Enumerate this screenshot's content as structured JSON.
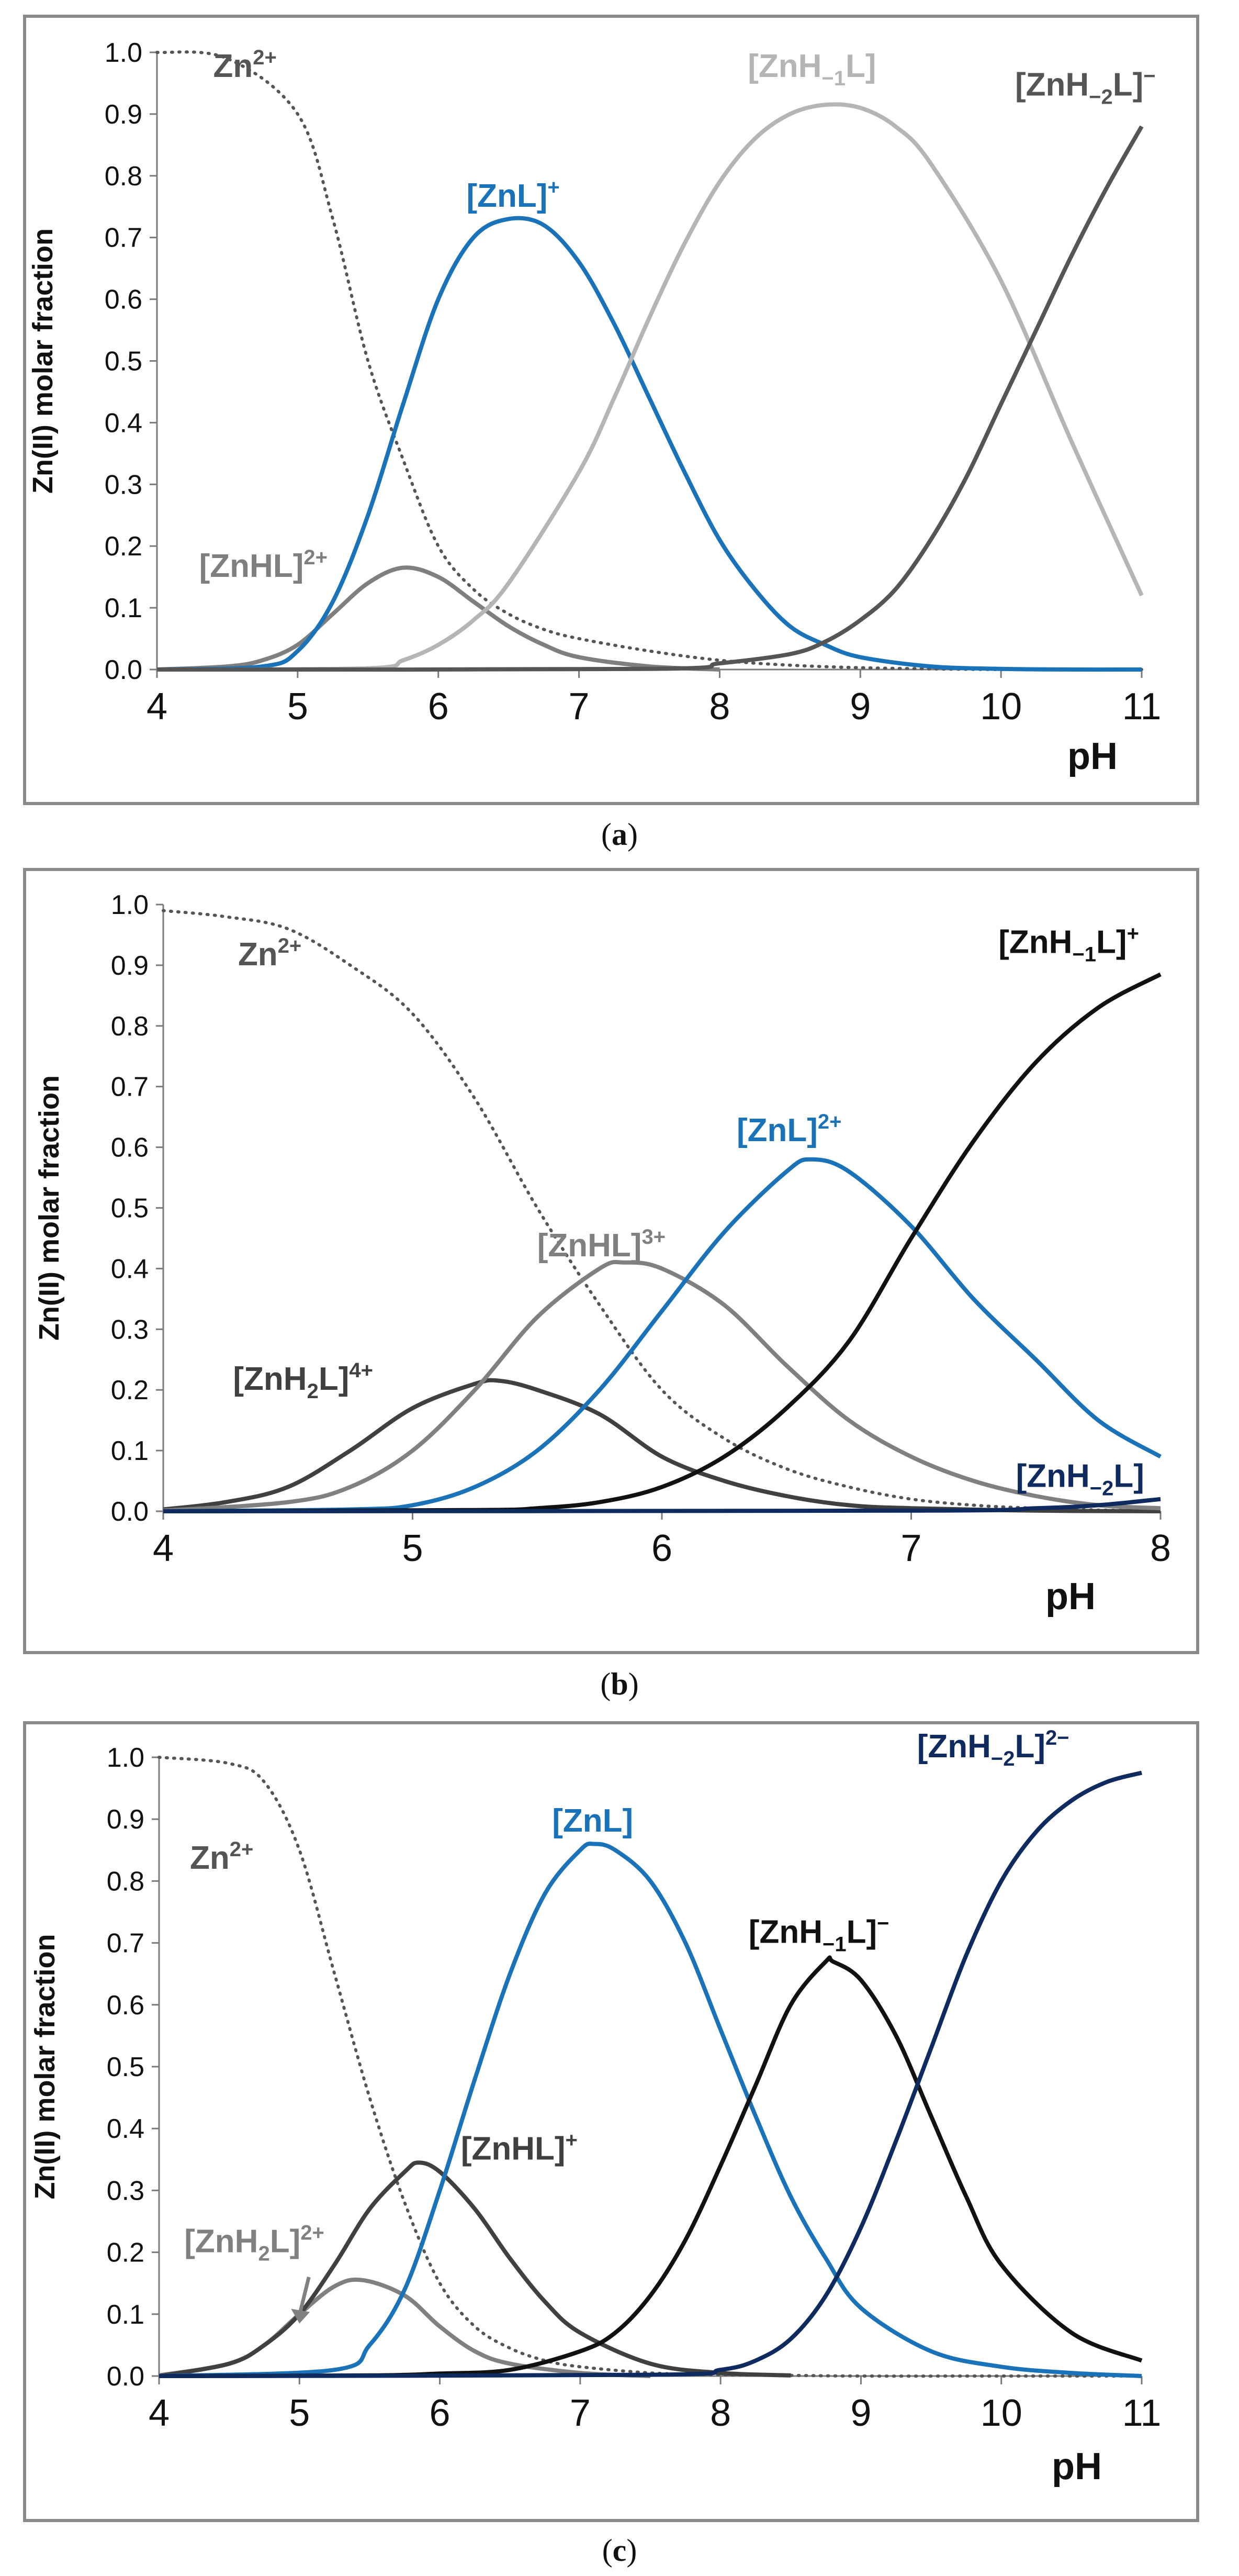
{
  "captions": {
    "a": "a",
    "b": "b",
    "c": "c"
  },
  "chart_data": [
    {
      "id": "a",
      "type": "line",
      "xlabel": "pH",
      "ylabel": "Zn(II) molar fraction",
      "xlim": [
        4,
        11
      ],
      "ylim": [
        0,
        1
      ],
      "xticks": [
        "4",
        "5",
        "6",
        "7",
        "8",
        "9",
        "10",
        "11"
      ],
      "yticks": [
        "0.0",
        "0.1",
        "0.2",
        "0.3",
        "0.4",
        "0.5",
        "0.6",
        "0.7",
        "0.8",
        "0.9",
        "1.0"
      ],
      "grid": false,
      "series": [
        {
          "name": "Zn²⁺",
          "color": "#555555",
          "dash": true,
          "x": [
            4,
            4.5,
            5,
            5.25,
            5.5,
            5.75,
            6,
            6.25,
            6.5,
            6.75,
            7,
            7.5,
            8,
            8.5,
            9,
            9.5,
            10,
            10.5,
            11
          ],
          "y": [
            1,
            0.99,
            0.9,
            0.73,
            0.5,
            0.34,
            0.2,
            0.13,
            0.09,
            0.065,
            0.05,
            0.03,
            0.015,
            0.007,
            0.003,
            0.001,
            0,
            0,
            0
          ],
          "label": {
            "prefix": "Zn",
            "sup": "2+",
            "at": [
              4.4,
              0.96
            ],
            "color": "#555555"
          }
        },
        {
          "name": "[ZnHL]²⁺",
          "color": "#7f7f7f",
          "x": [
            4,
            4.5,
            4.75,
            5,
            5.25,
            5.5,
            5.75,
            6,
            6.25,
            6.5,
            6.75,
            7,
            7.5,
            8
          ],
          "y": [
            0,
            0.005,
            0.015,
            0.04,
            0.09,
            0.14,
            0.165,
            0.15,
            0.11,
            0.07,
            0.04,
            0.02,
            0.005,
            0
          ],
          "label": {
            "prefix": "[ZnHL]",
            "sup": "2+",
            "at": [
              4.3,
              0.15
            ],
            "color": "#7f7f7f"
          }
        },
        {
          "name": "[ZnL]⁺",
          "color": "#1a73b8",
          "x": [
            4,
            4.75,
            5,
            5.25,
            5.5,
            5.75,
            6,
            6.25,
            6.5,
            6.75,
            7,
            7.25,
            7.5,
            7.75,
            8,
            8.25,
            8.5,
            8.75,
            9,
            9.5,
            10,
            10.5,
            11
          ],
          "y": [
            0,
            0.005,
            0.03,
            0.11,
            0.25,
            0.43,
            0.6,
            0.7,
            0.73,
            0.72,
            0.66,
            0.56,
            0.44,
            0.32,
            0.21,
            0.13,
            0.07,
            0.04,
            0.02,
            0.005,
            0.001,
            0,
            0
          ],
          "label": {
            "prefix": "[ZnL]",
            "sup": "+",
            "at": [
              6.2,
              0.75
            ],
            "color": "#1a73b8"
          }
        },
        {
          "name": "[ZnH−1L]",
          "color": "#b5b5b5",
          "x": [
            4,
            5.5,
            5.75,
            6,
            6.25,
            6.5,
            7,
            7.25,
            7.5,
            7.75,
            8,
            8.25,
            8.5,
            8.75,
            9,
            9.25,
            9.5,
            10,
            10.5,
            11
          ],
          "y": [
            0,
            0.002,
            0.015,
            0.04,
            0.08,
            0.14,
            0.32,
            0.44,
            0.57,
            0.69,
            0.79,
            0.86,
            0.9,
            0.915,
            0.91,
            0.88,
            0.82,
            0.63,
            0.37,
            0.12
          ],
          "label": {
            "prefix": "[ZnH",
            "sub": "−1",
            "suffix": "L]",
            "at": [
              8.2,
              0.96
            ],
            "color": "#b5b5b5"
          }
        },
        {
          "name": "[ZnH−2L]⁻",
          "color": "#555555",
          "x": [
            4,
            7.5,
            8,
            8.5,
            8.75,
            9,
            9.25,
            9.5,
            9.75,
            10,
            10.25,
            10.5,
            10.75,
            11
          ],
          "y": [
            0,
            0.001,
            0.01,
            0.025,
            0.045,
            0.08,
            0.13,
            0.21,
            0.31,
            0.43,
            0.55,
            0.67,
            0.78,
            0.88
          ],
          "label": {
            "prefix": "[ZnH",
            "sub": "−2",
            "suffix": "L]",
            "sup": "−",
            "at": [
              10.1,
              0.93
            ],
            "color": "#555555"
          }
        }
      ]
    },
    {
      "id": "b",
      "type": "line",
      "xlabel": "pH",
      "ylabel": "Zn(II) molar fraction",
      "xlim": [
        4,
        8
      ],
      "ylim": [
        0,
        1
      ],
      "xticks": [
        "4",
        "5",
        "6",
        "7",
        "8"
      ],
      "yticks": [
        "0.0",
        "0.1",
        "0.2",
        "0.3",
        "0.4",
        "0.5",
        "0.6",
        "0.7",
        "0.8",
        "0.9",
        "1.0"
      ],
      "grid": false,
      "series": [
        {
          "name": "Zn²⁺",
          "color": "#555555",
          "dash": true,
          "x": [
            4,
            4.25,
            4.5,
            4.75,
            5,
            5.25,
            5.5,
            5.75,
            6,
            6.25,
            6.5,
            6.75,
            7,
            7.25,
            7.5,
            7.75,
            8
          ],
          "y": [
            0.99,
            0.98,
            0.96,
            0.9,
            0.82,
            0.68,
            0.5,
            0.34,
            0.2,
            0.12,
            0.07,
            0.04,
            0.02,
            0.01,
            0.005,
            0.002,
            0.001
          ],
          "label": {
            "prefix": "Zn",
            "sup": "2+",
            "at": [
              4.3,
              0.9
            ],
            "color": "#555555"
          }
        },
        {
          "name": "[ZnH2L]⁴⁺",
          "color": "#404040",
          "x": [
            4,
            4.25,
            4.5,
            4.75,
            5,
            5.25,
            5.35,
            5.5,
            5.75,
            6,
            6.25,
            6.5,
            6.75,
            7,
            7.5,
            8
          ],
          "y": [
            0.003,
            0.015,
            0.04,
            0.1,
            0.17,
            0.21,
            0.215,
            0.2,
            0.16,
            0.09,
            0.05,
            0.025,
            0.01,
            0.005,
            0.001,
            0
          ],
          "label": {
            "prefix": "[ZnH",
            "sub": "2",
            "suffix": "L]",
            "sup": "4+",
            "at": [
              4.28,
              0.2
            ],
            "color": "#404040"
          }
        },
        {
          "name": "[ZnHL]³⁺",
          "color": "#808080",
          "x": [
            4,
            4.5,
            4.75,
            5,
            5.25,
            5.5,
            5.75,
            5.85,
            6,
            6.25,
            6.5,
            6.75,
            7,
            7.25,
            7.5,
            7.75,
            8
          ],
          "y": [
            0.001,
            0.015,
            0.04,
            0.1,
            0.2,
            0.32,
            0.4,
            0.41,
            0.4,
            0.34,
            0.24,
            0.15,
            0.09,
            0.05,
            0.025,
            0.01,
            0.005
          ],
          "label": {
            "prefix": "[ZnHL]",
            "sup": "3+",
            "at": [
              5.5,
              0.42
            ],
            "color": "#808080"
          }
        },
        {
          "name": "[ZnL]²⁺",
          "color": "#1a73b8",
          "x": [
            4,
            4.75,
            5,
            5.25,
            5.5,
            5.75,
            6,
            6.25,
            6.5,
            6.6,
            6.75,
            7,
            7.25,
            7.5,
            7.75,
            8
          ],
          "y": [
            0,
            0.003,
            0.01,
            0.04,
            0.1,
            0.2,
            0.33,
            0.46,
            0.56,
            0.58,
            0.56,
            0.47,
            0.35,
            0.25,
            0.15,
            0.09
          ],
          "label": {
            "prefix": "[ZnL]",
            "sup": "2+",
            "at": [
              6.3,
              0.61
            ],
            "color": "#1a73b8"
          }
        },
        {
          "name": "[ZnH−1L]⁺",
          "color": "#111111",
          "x": [
            4,
            5.25,
            5.5,
            5.75,
            6,
            6.25,
            6.5,
            6.75,
            7,
            7.25,
            7.5,
            7.75,
            8
          ],
          "y": [
            0,
            0.002,
            0.005,
            0.015,
            0.04,
            0.09,
            0.17,
            0.28,
            0.45,
            0.61,
            0.74,
            0.83,
            0.885
          ],
          "label": {
            "prefix": "[ZnH",
            "sub": "−1",
            "suffix": "L]",
            "sup": "+",
            "at": [
              7.35,
              0.92
            ],
            "color": "#111111"
          }
        },
        {
          "name": "[ZnH−2L]",
          "color": "#0e2a5e",
          "x": [
            4,
            7,
            7.5,
            7.75,
            8
          ],
          "y": [
            0,
            0.001,
            0.005,
            0.01,
            0.02
          ],
          "label": {
            "prefix": "[ZnH",
            "sub": "−2",
            "suffix": "L]",
            "at": [
              7.42,
              0.04
            ],
            "color": "#0e2a5e"
          }
        }
      ]
    },
    {
      "id": "c",
      "type": "line",
      "xlabel": "pH",
      "ylabel": "Zn(II) molar fraction",
      "xlim": [
        4,
        11
      ],
      "ylim": [
        0,
        1
      ],
      "xticks": [
        "4",
        "5",
        "6",
        "7",
        "8",
        "9",
        "10",
        "11"
      ],
      "yticks": [
        "0.0",
        "0.1",
        "0.2",
        "0.3",
        "0.4",
        "0.5",
        "0.6",
        "0.7",
        "0.8",
        "0.9",
        "1.0"
      ],
      "grid": false,
      "series": [
        {
          "name": "Zn²⁺",
          "color": "#555555",
          "dash": true,
          "x": [
            4,
            4.5,
            4.75,
            5,
            5.25,
            5.5,
            5.75,
            6,
            6.25,
            6.5,
            6.75,
            7,
            7.5,
            8,
            8.5,
            9,
            10,
            11
          ],
          "y": [
            1,
            0.99,
            0.96,
            0.85,
            0.65,
            0.45,
            0.28,
            0.15,
            0.08,
            0.045,
            0.025,
            0.015,
            0.005,
            0.002,
            0.001,
            0,
            0,
            0
          ],
          "label": {
            "prefix": "Zn",
            "sup": "2+",
            "at": [
              4.22,
              0.82
            ],
            "color": "#555555"
          }
        },
        {
          "name": "[ZnH2L]²⁺",
          "color": "#808080",
          "x": [
            4,
            4.5,
            4.75,
            5,
            5.25,
            5.45,
            5.75,
            6,
            6.25,
            6.5,
            7,
            7.5
          ],
          "y": [
            0.001,
            0.02,
            0.05,
            0.1,
            0.145,
            0.155,
            0.13,
            0.08,
            0.04,
            0.02,
            0.005,
            0
          ],
          "label": {
            "prefix": "[ZnH",
            "sub": "2",
            "suffix": "L]",
            "sup": "2+",
            "at": [
              4.18,
              0.2
            ],
            "color": "#808080"
          }
        },
        {
          "name": "[ZnHL]⁺",
          "color": "#404040",
          "x": [
            4,
            4.5,
            4.75,
            5,
            5.25,
            5.5,
            5.75,
            5.85,
            6,
            6.25,
            6.5,
            6.75,
            7,
            7.5,
            8,
            8.5
          ],
          "y": [
            0,
            0.02,
            0.05,
            0.1,
            0.18,
            0.27,
            0.33,
            0.345,
            0.33,
            0.27,
            0.19,
            0.12,
            0.07,
            0.02,
            0.005,
            0.001
          ],
          "label": {
            "prefix": "[ZnHL]",
            "sup": "+",
            "at": [
              6.15,
              0.35
            ],
            "color": "#404040"
          }
        },
        {
          "name": "[ZnL]",
          "color": "#1a73b8",
          "x": [
            4,
            5.25,
            5.5,
            5.75,
            6,
            6.25,
            6.5,
            6.75,
            7,
            7.1,
            7.25,
            7.5,
            7.75,
            8,
            8.25,
            8.5,
            8.75,
            9,
            9.5,
            10,
            10.5,
            11
          ],
          "y": [
            0,
            0.01,
            0.05,
            0.14,
            0.3,
            0.48,
            0.65,
            0.78,
            0.85,
            0.86,
            0.85,
            0.8,
            0.7,
            0.56,
            0.42,
            0.29,
            0.19,
            0.11,
            0.04,
            0.015,
            0.005,
            0
          ],
          "label": {
            "prefix": "[ZnL]",
            "at": [
              6.8,
              0.88
            ],
            "color": "#1a73b8"
          }
        },
        {
          "name": "[ZnH−1L]⁻",
          "color": "#111111",
          "x": [
            4,
            5.5,
            6,
            6.5,
            7,
            7.25,
            7.5,
            7.75,
            8,
            8.25,
            8.5,
            8.75,
            8.8,
            9,
            9.25,
            9.5,
            9.75,
            10,
            10.5,
            11
          ],
          "y": [
            0,
            0.001,
            0.004,
            0.01,
            0.04,
            0.07,
            0.13,
            0.22,
            0.34,
            0.47,
            0.6,
            0.67,
            0.67,
            0.64,
            0.55,
            0.42,
            0.29,
            0.18,
            0.07,
            0.025
          ],
          "label": {
            "prefix": "[ZnH",
            "sub": "−1",
            "suffix": "L]",
            "sup": "−",
            "at": [
              8.2,
              0.7
            ],
            "color": "#111111"
          }
        },
        {
          "name": "[ZnH−2L]²⁻",
          "color": "#0e2a5e",
          "x": [
            4,
            7.5,
            8,
            8.25,
            8.5,
            8.75,
            9,
            9.25,
            9.5,
            9.75,
            10,
            10.25,
            10.5,
            10.75,
            11
          ],
          "y": [
            0,
            0.002,
            0.01,
            0.025,
            0.06,
            0.13,
            0.24,
            0.38,
            0.53,
            0.68,
            0.8,
            0.88,
            0.93,
            0.96,
            0.975
          ],
          "label": {
            "prefix": "[ZnH",
            "sub": "−2",
            "suffix": "L]",
            "sup": "2−",
            "at": [
              9.4,
              1.0
            ],
            "color": "#0e2a5e"
          }
        }
      ],
      "arrow": {
        "from": [
          5.0,
          0.16
        ],
        "to": [
          5.0,
          0.09
        ],
        "color": "#808080"
      }
    }
  ]
}
